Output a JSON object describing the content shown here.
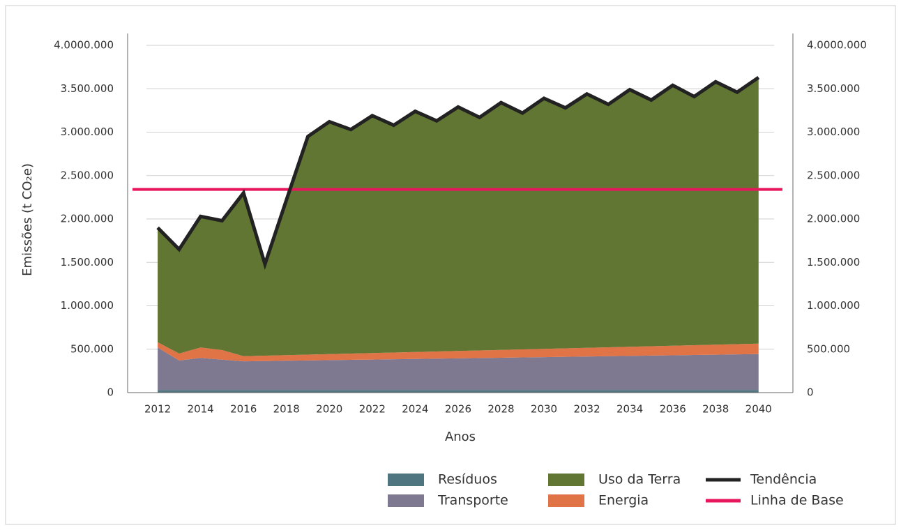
{
  "chart_data": {
    "type": "area",
    "stacked": true,
    "x": [
      2012,
      2013,
      2014,
      2015,
      2016,
      2017,
      2018,
      2019,
      2020,
      2021,
      2022,
      2023,
      2024,
      2025,
      2026,
      2027,
      2028,
      2029,
      2030,
      2031,
      2032,
      2033,
      2034,
      2035,
      2036,
      2037,
      2038,
      2039,
      2040
    ],
    "xlim": [
      2010.6,
      2041.6
    ],
    "xticks": [
      2012,
      2014,
      2016,
      2018,
      2020,
      2022,
      2024,
      2026,
      2028,
      2030,
      2032,
      2034,
      2036,
      2038,
      2040
    ],
    "xlabel": "Anos",
    "ylabel": "Emissões (t CO₂e)",
    "ylim": [
      0,
      4000000
    ],
    "yticks": [
      0,
      {
        "value": 500000,
        "label": "500.000"
      },
      {
        "value": 1000000,
        "label": "1.000.000"
      },
      {
        "value": 1500000,
        "label": "1.500.000"
      },
      {
        "value": 2000000,
        "label": "2.000.000"
      },
      {
        "value": 2500000,
        "label": "2.500.000"
      },
      {
        "value": 3000000,
        "label": "3.000.000"
      },
      {
        "value": 3500000,
        "label": "3.500.000"
      },
      {
        "value": 4000000,
        "label": "4.0000.000"
      }
    ],
    "y2lim": [
      0,
      4000000
    ],
    "y2ticks": [
      0,
      {
        "value": 500000,
        "label": "500.000"
      },
      {
        "value": 1000000,
        "label": "1.000.000"
      },
      {
        "value": 1500000,
        "label": "1.500.000"
      },
      {
        "value": 2000000,
        "label": "2.000.000"
      },
      {
        "value": 2500000,
        "label": "2.500.000"
      },
      {
        "value": 3000000,
        "label": "3.000.000"
      },
      {
        "value": 3500000,
        "label": "3.500.000"
      },
      {
        "value": 4000000,
        "label": "4.0000.000"
      }
    ],
    "grid": true,
    "series": [
      {
        "name": "Resíduos",
        "color": "#4f7580",
        "values": [
          30000,
          30000,
          30000,
          30000,
          30000,
          30000,
          30000,
          30000,
          30000,
          30000,
          30000,
          30000,
          30000,
          30000,
          30000,
          30000,
          30000,
          30000,
          30000,
          30000,
          30000,
          30000,
          30000,
          30000,
          30000,
          30000,
          30000,
          30000,
          30000
        ]
      },
      {
        "name": "Transporte",
        "color": "#7f7891",
        "values": [
          490000,
          340000,
          370000,
          350000,
          330000,
          333500,
          337000,
          340500,
          344000,
          347500,
          351000,
          354500,
          358000,
          361500,
          365000,
          368500,
          372000,
          375500,
          379000,
          382500,
          386000,
          389500,
          393000,
          396500,
          400000,
          403500,
          407000,
          410500,
          414000
        ]
      },
      {
        "name": "Energia",
        "color": "#e07447",
        "values": [
          60000,
          80000,
          120000,
          110000,
          60000,
          62500,
          65000,
          67500,
          70000,
          72500,
          75000,
          77500,
          80000,
          82500,
          85000,
          87500,
          90000,
          92500,
          95000,
          97500,
          100000,
          102500,
          105000,
          107500,
          110000,
          112500,
          115000,
          117500,
          120000
        ]
      },
      {
        "name": "Uso da Terra",
        "color": "#617632",
        "values": [
          1320000,
          1200000,
          1510000,
          1490000,
          1880000,
          1054000,
          1788000,
          2512000,
          2676000,
          2580000,
          2734000,
          2618000,
          2772000,
          2656000,
          2810000,
          2684000,
          2848000,
          2722000,
          2886000,
          2770000,
          2924000,
          2798000,
          2962000,
          2836000,
          3000000,
          2864000,
          3028000,
          2902000,
          3066000
        ]
      }
    ],
    "trend": {
      "name": "Tendência",
      "color": "#222222",
      "values": [
        1900000,
        1650000,
        2030000,
        1980000,
        2300000,
        1480000,
        2220000,
        2950000,
        3120000,
        3030000,
        3190000,
        3080000,
        3240000,
        3130000,
        3290000,
        3170000,
        3340000,
        3220000,
        3390000,
        3280000,
        3440000,
        3320000,
        3490000,
        3370000,
        3540000,
        3410000,
        3580000,
        3460000,
        3630000
      ]
    },
    "baseline": {
      "name": "Linha de Base",
      "color": "#e8175d",
      "value": 2340000
    }
  }
}
